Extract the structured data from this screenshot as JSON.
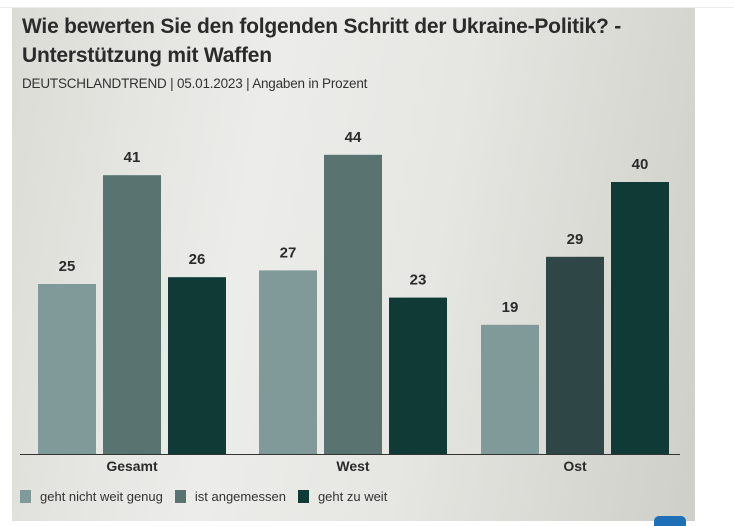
{
  "chart_data": {
    "type": "bar",
    "title": "Wie bewerten Sie den folgenden Schritt der Ukraine-Politik? - Unterstützung mit Waffen",
    "subtitle": "DEUTSCHLANDTREND | 05.01.2023 | Angaben in Prozent",
    "categories": [
      "Gesamt",
      "West",
      "Ost"
    ],
    "series": [
      {
        "name": "geht nicht weit genug",
        "color": "#7f9a99",
        "values": [
          25,
          27,
          19
        ]
      },
      {
        "name": "ist angemessen",
        "color": "#587370",
        "values": [
          41,
          44,
          29
        ]
      },
      {
        "name": "geht zu weit",
        "color": "#0f3a35",
        "values": [
          26,
          23,
          40
        ]
      }
    ],
    "bar_color_overrides": [
      {
        "series": 1,
        "category": 2,
        "color": "#2e4646"
      }
    ],
    "xlabel": "",
    "ylabel": "",
    "ylim": [
      0,
      44
    ],
    "grid": false,
    "legend_position": "bottom-left",
    "data_labels": true
  }
}
